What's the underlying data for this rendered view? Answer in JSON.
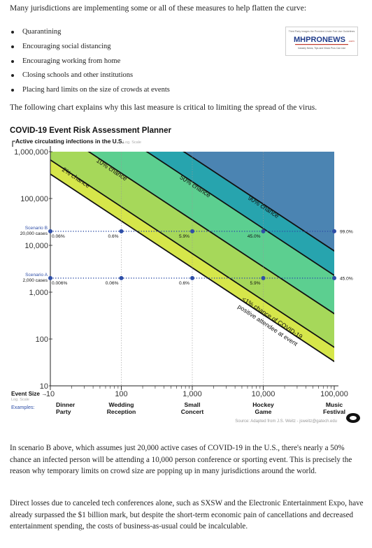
{
  "intro": "Many jurisdictions are implementing some or all of these measures to help flatten the curve:",
  "bullets": [
    "Quarantining",
    "Encouraging social distancing",
    "Encouraging working from home",
    "Closing schools and other institutions",
    "Placing hard limits on the size of crowds at events"
  ],
  "logo": {
    "top": "Third Party images the Provided Under Fair Use Guidelines",
    "brand": "MHPRONEWS",
    "tld": ".com",
    "tagline": "Industry News, Tips and Views Pros Can Use",
    "colors": {
      "blue": "#1f3b8a",
      "red": "#c0392b"
    }
  },
  "lead": "The following chart explains why this last measure is critical to limiting the spread of the virus.",
  "chart_data": {
    "type": "area",
    "title": "COVID-19 Event Risk Assessment Planner",
    "ylabel": "Active circulating infections in the U.S.",
    "ylabel_note": "Log. Scale",
    "xlabel": "Event Size",
    "xlabel_note": "Log. Scale",
    "x_scale": "log",
    "y_scale": "log",
    "xlim": [
      10,
      100000
    ],
    "ylim": [
      10,
      1000000
    ],
    "x_ticks": [
      "10",
      "100",
      "1,000",
      "10,000",
      "100,000"
    ],
    "y_ticks": [
      "1,000,000",
      "100,000",
      "10,000",
      "1,000",
      "100",
      "10"
    ],
    "examples_label": "Examples:",
    "examples": [
      "Dinner\nParty",
      "Wedding\nReception",
      "Small\nConcert",
      "Hockey\nGame",
      "Music\nFestival"
    ],
    "bands": [
      {
        "label": "<1% chance of COVID-19 positive attendee at event",
        "color": "#d6e64a"
      },
      {
        "label": "2% chance",
        "color": "#a6d85a"
      },
      {
        "label": "10% chance",
        "color": "#5ccf90"
      },
      {
        "label": "50% chance",
        "color": "#27a4ae"
      },
      {
        "label": "90% chance",
        "color": "#4b84b2"
      }
    ],
    "boundaries": [
      {
        "label": "",
        "value": 0.01
      },
      {
        "label": "2% chance",
        "value": 0.02
      },
      {
        "label": "10% chance",
        "value": 0.1
      },
      {
        "label": "50% chance",
        "value": 0.5
      },
      {
        "label": "90% chance",
        "value": 0.9
      }
    ],
    "boundary_rounding": {
      "0.01": 0.01,
      "0.02": 0.02,
      "0.1": 0.1,
      "0.5": 0.5,
      "0.9": 0.9
    },
    "scenarios": [
      {
        "name": "Scenario B",
        "cases_label": "20,000 cases",
        "cases": 20000,
        "points": [
          {
            "x": 10,
            "label": "0.06%"
          },
          {
            "x": 100,
            "label": "0.6%"
          },
          {
            "x": 1000,
            "label": "5.9%"
          },
          {
            "x": 10000,
            "label": "45.0%"
          },
          {
            "x": 100000,
            "label": "99.0%"
          }
        ]
      },
      {
        "name": "Scenario A",
        "cases_label": "2,000 cases",
        "cases": 2000,
        "points": [
          {
            "x": 10,
            "label": "0.006%"
          },
          {
            "x": 100,
            "label": "0.06%"
          },
          {
            "x": 1000,
            "label": "0.6%"
          },
          {
            "x": 10000,
            "label": "5.9%"
          },
          {
            "x": 100000,
            "label": "45.0%"
          }
        ]
      }
    ],
    "source": "Source: Adapted from J.S. Weitz - jsweitz@gatech.edu",
    "colors": {
      "line": "#111111",
      "dot": "#2f4fa8",
      "dotted": "#2f4fa8"
    }
  },
  "paragraph1": "In scenario B above, which assumes just 20,000 active cases of COVID-19 in the U.S., there's nearly a 50% chance an infected person will be attending a 10,000 person conference or sporting event. This is precisely the reason why temporary limits on crowd size are popping up in many jurisdictions around the world.",
  "paragraph2": "Direct losses due to canceled tech conferences alone, such as SXSW and the Electronic Entertainment Expo, have already surpassed the $1 billion mark, but despite the short-term economic pain of cancellations and decreased entertainment spending, the costs of business-as-usual could be incalculable."
}
